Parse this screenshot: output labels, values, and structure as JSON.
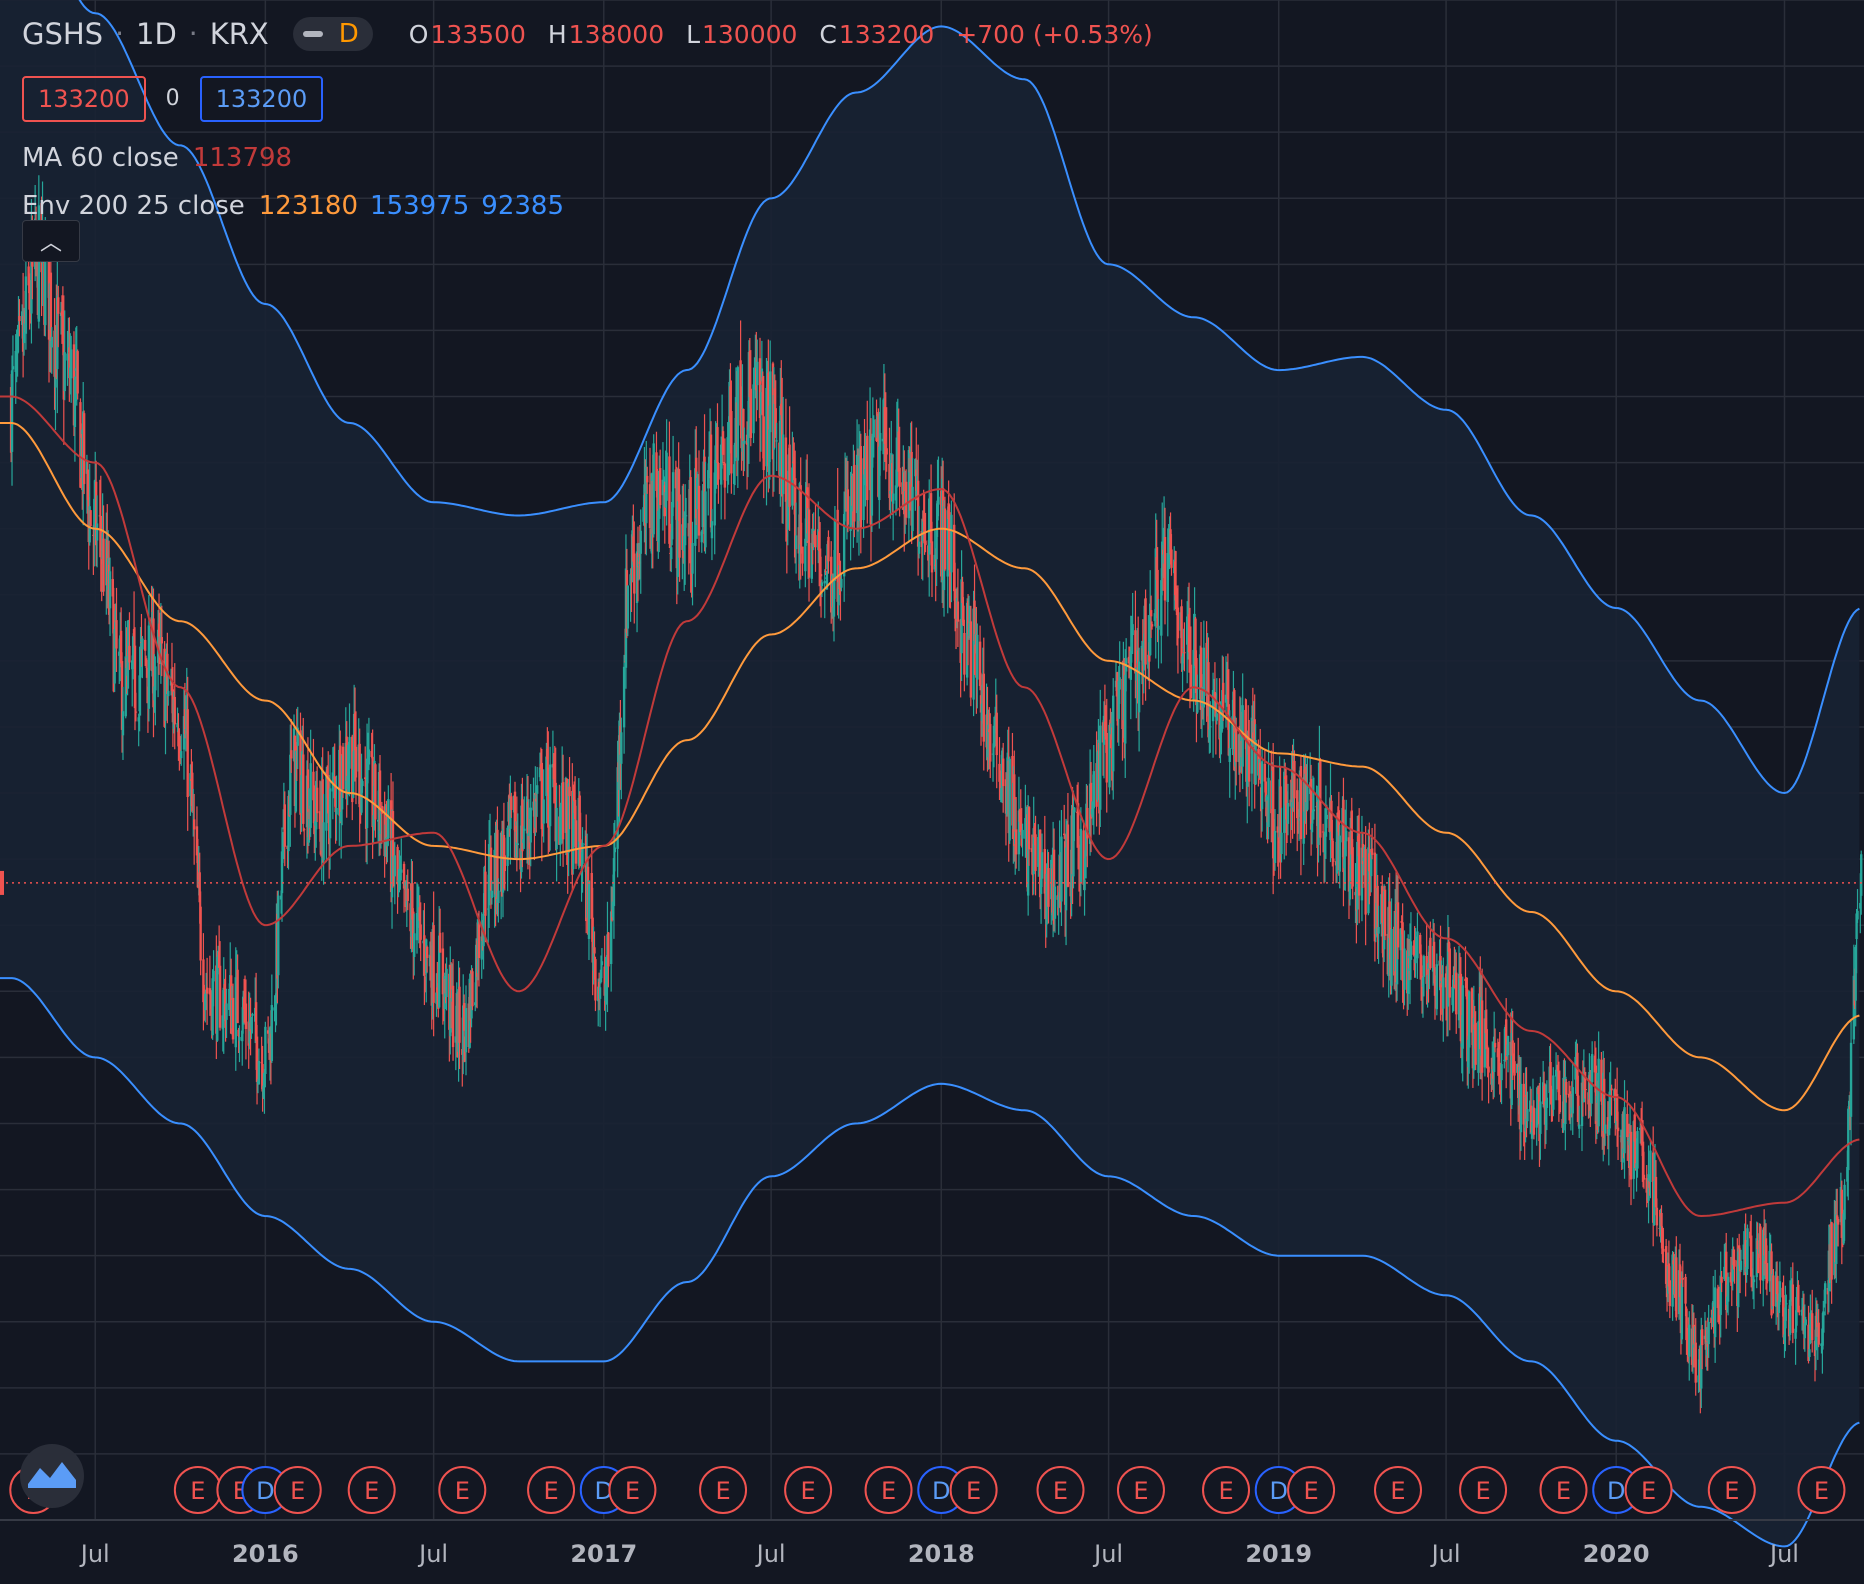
{
  "header": {
    "symbol": "GSHS",
    "interval": "1D",
    "exchange": "KRX",
    "interval_badge": "D",
    "ohlc": [
      {
        "key": "O",
        "value": "133500"
      },
      {
        "key": "H",
        "value": "138000"
      },
      {
        "key": "L",
        "value": "130000"
      },
      {
        "key": "C",
        "value": "133200"
      }
    ],
    "change": "+700 (+0.53%)"
  },
  "price_boxes": {
    "bid": "133200",
    "spread": "0",
    "ask": "133200"
  },
  "indicators": [
    {
      "name": "MA 60 close",
      "values": [
        {
          "v": "113798",
          "color": "#c13a3a"
        }
      ]
    },
    {
      "name": "Env 200 25 close",
      "values": [
        {
          "v": "123180",
          "color": "#ff9a3c"
        },
        {
          "v": "153975",
          "color": "#3a8fff"
        },
        {
          "v": "92385",
          "color": "#3a8fff"
        }
      ]
    }
  ],
  "collapse_icon": "chevron-up-icon",
  "colors": {
    "background": "#131722",
    "grid": "#2a2e39",
    "up": "#26a69a",
    "down": "#ef5350",
    "ma": "#c13a3a",
    "basis": "#ff9a3c",
    "band": "#3a8fff",
    "band_fill": "#182233"
  },
  "chart_data": {
    "type": "line",
    "series_kind": "candlestick with moving average and envelope",
    "x_tick_labels": [
      "Jul",
      "2016",
      "Jul",
      "2017",
      "Jul",
      "2018",
      "Jul",
      "2019",
      "Jul",
      "2020",
      "Jul"
    ],
    "x_tick_dates": [
      "2015-07-01",
      "2016-01-01",
      "2016-07-01",
      "2017-01-01",
      "2017-07-01",
      "2018-01-01",
      "2018-07-01",
      "2019-01-01",
      "2019-07-01",
      "2020-01-01",
      "2020-07-01"
    ],
    "x_range": [
      "2015-03-20",
      "2020-09-25"
    ],
    "y_range": [
      85000,
      200000
    ],
    "last_price": 133200,
    "close": {
      "x": [
        "2015-04-01",
        "2015-05-01",
        "2015-06-01",
        "2015-07-01",
        "2015-08-01",
        "2015-09-01",
        "2015-10-01",
        "2015-11-01",
        "2015-12-01",
        "2016-01-01",
        "2016-02-01",
        "2016-03-01",
        "2016-04-01",
        "2016-05-01",
        "2016-06-01",
        "2016-07-01",
        "2016-08-01",
        "2016-09-01",
        "2016-10-01",
        "2016-11-01",
        "2016-12-01",
        "2017-01-01",
        "2017-02-01",
        "2017-03-01",
        "2017-04-01",
        "2017-05-01",
        "2017-06-01",
        "2017-07-01",
        "2017-08-01",
        "2017-09-01",
        "2017-10-01",
        "2017-11-01",
        "2017-12-01",
        "2018-01-01",
        "2018-02-01",
        "2018-03-01",
        "2018-04-01",
        "2018-05-01",
        "2018-06-01",
        "2018-07-01",
        "2018-08-01",
        "2018-09-01",
        "2018-10-01",
        "2018-11-01",
        "2018-12-01",
        "2019-01-01",
        "2019-02-01",
        "2019-03-01",
        "2019-04-01",
        "2019-05-01",
        "2019-06-01",
        "2019-07-01",
        "2019-08-01",
        "2019-09-01",
        "2019-10-01",
        "2019-11-01",
        "2019-12-01",
        "2020-01-01",
        "2020-02-01",
        "2020-03-01",
        "2020-04-01",
        "2020-05-01",
        "2020-06-01",
        "2020-07-01",
        "2020-08-01",
        "2020-09-01",
        "2020-09-22"
      ],
      "y": [
        170000,
        180000,
        172000,
        160000,
        148000,
        150000,
        146000,
        125000,
        124000,
        120000,
        142000,
        138000,
        143000,
        139000,
        131000,
        127000,
        122000,
        134000,
        137000,
        140000,
        137000,
        125000,
        158000,
        163000,
        160000,
        164000,
        170000,
        168000,
        160000,
        157000,
        162000,
        166000,
        162000,
        160000,
        151000,
        143000,
        136000,
        133000,
        136000,
        144000,
        150000,
        157000,
        150000,
        146000,
        143000,
        138000,
        140000,
        138000,
        134000,
        129000,
        127000,
        126000,
        122000,
        120000,
        116000,
        117000,
        118000,
        115000,
        112000,
        103000,
        97000,
        103000,
        105000,
        101000,
        99000,
        108000,
        133200
      ]
    },
    "ma60": {
      "x": [
        "2015-04-01",
        "2015-07-01",
        "2015-10-01",
        "2016-01-01",
        "2016-04-01",
        "2016-07-01",
        "2016-10-01",
        "2017-01-01",
        "2017-04-01",
        "2017-07-01",
        "2017-10-01",
        "2018-01-01",
        "2018-04-01",
        "2018-07-01",
        "2018-10-01",
        "2019-01-01",
        "2019-04-01",
        "2019-07-01",
        "2019-10-01",
        "2020-01-01",
        "2020-04-01",
        "2020-07-01",
        "2020-09-22"
      ],
      "y": [
        170000,
        165000,
        148000,
        130000,
        136000,
        137000,
        125000,
        136000,
        153000,
        164000,
        160000,
        163000,
        148000,
        135000,
        148000,
        142000,
        137000,
        129000,
        122000,
        117000,
        108000,
        109000,
        113798
      ]
    },
    "basis": {
      "x": [
        "2015-04-01",
        "2015-07-01",
        "2015-10-01",
        "2016-01-01",
        "2016-04-01",
        "2016-07-01",
        "2016-10-01",
        "2017-01-01",
        "2017-04-01",
        "2017-07-01",
        "2017-10-01",
        "2018-01-01",
        "2018-04-01",
        "2018-07-01",
        "2018-10-01",
        "2019-01-01",
        "2019-04-01",
        "2019-07-01",
        "2019-10-01",
        "2020-01-01",
        "2020-04-01",
        "2020-07-01",
        "2020-09-22"
      ],
      "y": [
        168000,
        160000,
        153000,
        147000,
        140000,
        136000,
        135000,
        136000,
        144000,
        152000,
        157000,
        160000,
        157000,
        150000,
        147000,
        143000,
        142000,
        137000,
        131000,
        125000,
        120000,
        116000,
        123180
      ]
    },
    "upper": {
      "x": [
        "2015-04-01",
        "2015-07-01",
        "2015-10-01",
        "2016-01-01",
        "2016-04-01",
        "2016-07-01",
        "2016-10-01",
        "2017-01-01",
        "2017-04-01",
        "2017-07-01",
        "2017-10-01",
        "2018-01-01",
        "2018-04-01",
        "2018-07-01",
        "2018-10-01",
        "2019-01-01",
        "2019-04-01",
        "2019-07-01",
        "2019-10-01",
        "2020-01-01",
        "2020-04-01",
        "2020-07-01",
        "2020-09-22"
      ],
      "y": [
        210000,
        199000,
        189000,
        177000,
        168000,
        162000,
        161000,
        162000,
        172000,
        185000,
        193000,
        198000,
        194000,
        180000,
        176000,
        172000,
        173000,
        169000,
        161000,
        154000,
        147000,
        140000,
        153975
      ]
    },
    "lower": {
      "x": [
        "2015-04-01",
        "2015-07-01",
        "2015-10-01",
        "2016-01-01",
        "2016-04-01",
        "2016-07-01",
        "2016-10-01",
        "2017-01-01",
        "2017-04-01",
        "2017-07-01",
        "2017-10-01",
        "2018-01-01",
        "2018-04-01",
        "2018-07-01",
        "2018-10-01",
        "2019-01-01",
        "2019-04-01",
        "2019-07-01",
        "2019-10-01",
        "2020-01-01",
        "2020-04-01",
        "2020-07-01",
        "2020-09-22"
      ],
      "y": [
        126000,
        120000,
        115000,
        108000,
        104000,
        100000,
        97000,
        97000,
        103000,
        111000,
        115000,
        118000,
        116000,
        111000,
        108000,
        105000,
        105000,
        102000,
        97000,
        91000,
        86000,
        83000,
        92385
      ]
    },
    "events": [
      {
        "date": "2015-04-25",
        "label": "E"
      },
      {
        "date": "2015-10-20",
        "label": "E"
      },
      {
        "date": "2015-12-05",
        "label": "E"
      },
      {
        "date": "2016-01-01",
        "label": "D"
      },
      {
        "date": "2016-02-05",
        "label": "E"
      },
      {
        "date": "2016-04-25",
        "label": "E"
      },
      {
        "date": "2016-08-01",
        "label": "E"
      },
      {
        "date": "2016-11-05",
        "label": "E"
      },
      {
        "date": "2017-01-01",
        "label": "D"
      },
      {
        "date": "2017-02-01",
        "label": "E"
      },
      {
        "date": "2017-05-10",
        "label": "E"
      },
      {
        "date": "2017-08-10",
        "label": "E"
      },
      {
        "date": "2017-11-05",
        "label": "E"
      },
      {
        "date": "2018-01-01",
        "label": "D"
      },
      {
        "date": "2018-02-05",
        "label": "E"
      },
      {
        "date": "2018-05-10",
        "label": "E"
      },
      {
        "date": "2018-08-05",
        "label": "E"
      },
      {
        "date": "2018-11-05",
        "label": "E"
      },
      {
        "date": "2019-01-01",
        "label": "D"
      },
      {
        "date": "2019-02-05",
        "label": "E"
      },
      {
        "date": "2019-05-10",
        "label": "E"
      },
      {
        "date": "2019-08-10",
        "label": "E"
      },
      {
        "date": "2019-11-05",
        "label": "E"
      },
      {
        "date": "2020-01-01",
        "label": "D"
      },
      {
        "date": "2020-02-05",
        "label": "E"
      },
      {
        "date": "2020-05-05",
        "label": "E"
      },
      {
        "date": "2020-08-10",
        "label": "E"
      }
    ]
  }
}
